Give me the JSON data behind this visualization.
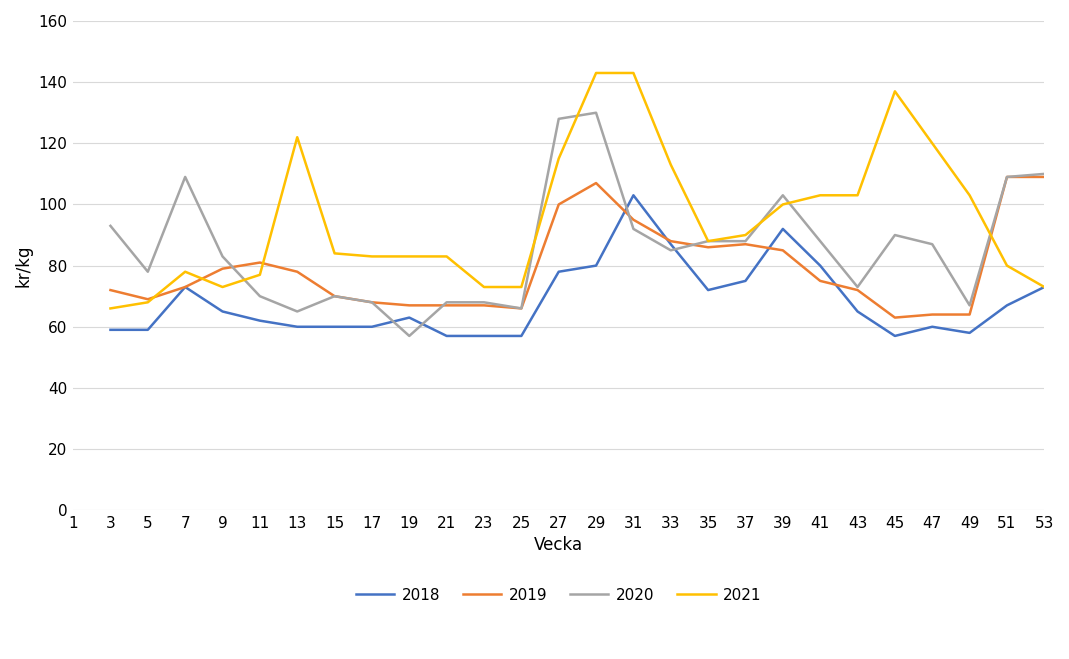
{
  "title": "",
  "xlabel": "Vecka",
  "ylabel": "kr/kg",
  "xlim": [
    1,
    53
  ],
  "ylim": [
    0,
    160
  ],
  "yticks": [
    0,
    20,
    40,
    60,
    80,
    100,
    120,
    140,
    160
  ],
  "xticks": [
    1,
    3,
    5,
    7,
    9,
    11,
    13,
    15,
    17,
    19,
    21,
    23,
    25,
    27,
    29,
    31,
    33,
    35,
    37,
    39,
    41,
    43,
    45,
    47,
    49,
    51,
    53
  ],
  "background_color": "#ffffff",
  "plot_bg_color": "#ffffff",
  "gridcolor": "#d9d9d9",
  "series": {
    "2018": {
      "color": "#4472c4",
      "weeks": [
        3,
        5,
        7,
        9,
        11,
        13,
        15,
        17,
        19,
        21,
        23,
        25,
        27,
        29,
        31,
        33,
        35,
        37,
        39,
        41,
        43,
        45,
        47,
        49,
        51,
        53
      ],
      "values": [
        59,
        59,
        73,
        65,
        62,
        60,
        60,
        60,
        63,
        57,
        57,
        57,
        78,
        80,
        103,
        87,
        72,
        75,
        92,
        80,
        65,
        57,
        60,
        58,
        67,
        73
      ]
    },
    "2019": {
      "color": "#ed7d31",
      "weeks": [
        3,
        5,
        7,
        9,
        11,
        13,
        15,
        17,
        19,
        21,
        23,
        25,
        27,
        29,
        31,
        33,
        35,
        37,
        39,
        41,
        43,
        45,
        47,
        49,
        51,
        53
      ],
      "values": [
        72,
        69,
        73,
        79,
        81,
        78,
        70,
        68,
        67,
        67,
        67,
        66,
        100,
        107,
        95,
        88,
        86,
        87,
        85,
        75,
        72,
        63,
        64,
        64,
        109,
        109
      ]
    },
    "2020": {
      "color": "#a5a5a5",
      "weeks": [
        3,
        5,
        7,
        9,
        11,
        13,
        15,
        17,
        19,
        21,
        23,
        25,
        27,
        29,
        31,
        33,
        35,
        37,
        39,
        41,
        43,
        45,
        47,
        49,
        51,
        53
      ],
      "values": [
        93,
        78,
        109,
        83,
        70,
        65,
        70,
        68,
        57,
        68,
        68,
        66,
        128,
        130,
        92,
        85,
        88,
        88,
        103,
        88,
        73,
        90,
        87,
        67,
        109,
        110
      ]
    },
    "2021": {
      "color": "#ffc000",
      "weeks": [
        3,
        5,
        7,
        9,
        11,
        13,
        15,
        17,
        19,
        21,
        23,
        25,
        27,
        29,
        31,
        33,
        35,
        37,
        39,
        41,
        43,
        45,
        47,
        49,
        51,
        53
      ],
      "values": [
        66,
        68,
        78,
        73,
        77,
        122,
        84,
        83,
        83,
        83,
        73,
        73,
        115,
        143,
        143,
        113,
        88,
        90,
        100,
        103,
        103,
        137,
        120,
        103,
        80,
        73
      ]
    }
  },
  "legend_labels": [
    "2018",
    "2019",
    "2020",
    "2021"
  ],
  "linewidth": 1.8
}
